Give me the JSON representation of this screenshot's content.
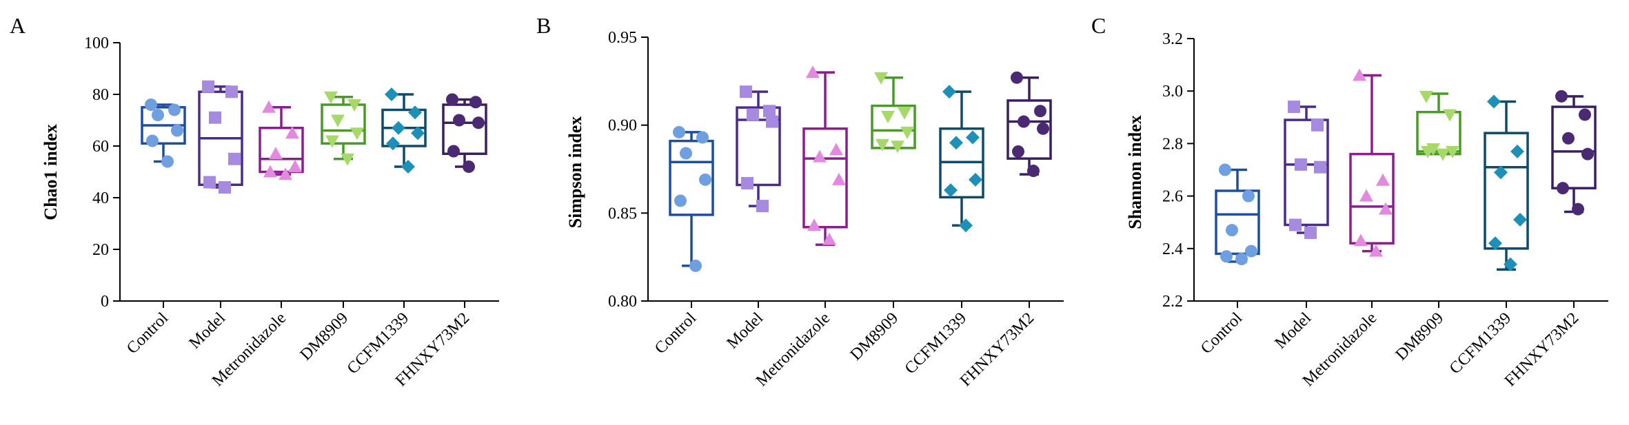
{
  "figure": {
    "categories": [
      "Control",
      "Model",
      "Metronidazole",
      "DM8909",
      "CCFM1339",
      "FHNXY73M2"
    ],
    "group_colors": {
      "box": [
        "#1e4f9a",
        "#4b2a8e",
        "#8a1e8e",
        "#4a9a2a",
        "#0f4a68",
        "#3a1f5e"
      ],
      "point": [
        "#6f9fe0",
        "#a58ae0",
        "#e28ae0",
        "#a6d86a",
        "#1e90b8",
        "#4a2a72"
      ]
    },
    "marker_shapes": [
      "circle",
      "square",
      "triangle-up",
      "triangle-down",
      "diamond",
      "circle"
    ]
  },
  "chart_data": [
    {
      "panel_label": "A",
      "type": "box",
      "ylabel": "Chao1 index",
      "ylim": [
        0,
        100
      ],
      "yticks": [
        0,
        20,
        40,
        60,
        80,
        100
      ],
      "ytick_labels": [
        "0",
        "20",
        "40",
        "60",
        "80",
        "100"
      ],
      "series": [
        {
          "name": "Control",
          "min": 54,
          "q1": 61,
          "median": 68,
          "q3": 75,
          "max": 76,
          "points": [
            76,
            74,
            72,
            66,
            62,
            54
          ]
        },
        {
          "name": "Model",
          "min": 44,
          "q1": 45,
          "median": 63,
          "q3": 81,
          "max": 83,
          "points": [
            83,
            81,
            71,
            55,
            46,
            44
          ]
        },
        {
          "name": "Metronidazole",
          "min": 49,
          "q1": 50,
          "median": 55,
          "q3": 67,
          "max": 75,
          "points": [
            75,
            65,
            57,
            52,
            50,
            49
          ]
        },
        {
          "name": "DM8909",
          "min": 55,
          "q1": 61,
          "median": 66,
          "q3": 76,
          "max": 79,
          "points": [
            79,
            76,
            70,
            65,
            62,
            55
          ]
        },
        {
          "name": "CCFM1339",
          "min": 52,
          "q1": 60,
          "median": 67,
          "q3": 74,
          "max": 80,
          "points": [
            80,
            73,
            67,
            65,
            61,
            52
          ]
        },
        {
          "name": "FHNXY73M2",
          "min": 52,
          "q1": 57,
          "median": 69,
          "q3": 76,
          "max": 78,
          "points": [
            78,
            77,
            70,
            69,
            58,
            52
          ]
        }
      ]
    },
    {
      "panel_label": "B",
      "type": "box",
      "ylabel": "Simpson index",
      "ylim": [
        0.8,
        0.95
      ],
      "yticks": [
        0.8,
        0.85,
        0.9,
        0.95
      ],
      "ytick_labels": [
        "0.80",
        "0.85",
        "0.90",
        "0.95"
      ],
      "series": [
        {
          "name": "Control",
          "min": 0.82,
          "q1": 0.849,
          "median": 0.879,
          "q3": 0.891,
          "max": 0.896,
          "points": [
            0.896,
            0.893,
            0.884,
            0.869,
            0.857,
            0.82
          ]
        },
        {
          "name": "Model",
          "min": 0.854,
          "q1": 0.866,
          "median": 0.903,
          "q3": 0.91,
          "max": 0.919,
          "points": [
            0.919,
            0.908,
            0.906,
            0.902,
            0.867,
            0.854
          ]
        },
        {
          "name": "Metronidazole",
          "min": 0.832,
          "q1": 0.842,
          "median": 0.881,
          "q3": 0.898,
          "max": 0.93,
          "points": [
            0.93,
            0.886,
            0.882,
            0.869,
            0.843,
            0.835
          ]
        },
        {
          "name": "DM8909",
          "min": 0.887,
          "q1": 0.887,
          "median": 0.897,
          "q3": 0.911,
          "max": 0.927,
          "points": [
            0.927,
            0.907,
            0.905,
            0.896,
            0.889,
            0.888
          ]
        },
        {
          "name": "CCFM1339",
          "min": 0.843,
          "q1": 0.859,
          "median": 0.879,
          "q3": 0.898,
          "max": 0.919,
          "points": [
            0.919,
            0.893,
            0.89,
            0.869,
            0.863,
            0.843
          ]
        },
        {
          "name": "FHNXY73M2",
          "min": 0.872,
          "q1": 0.881,
          "median": 0.902,
          "q3": 0.914,
          "max": 0.927,
          "points": [
            0.927,
            0.908,
            0.902,
            0.898,
            0.885,
            0.874
          ]
        }
      ]
    },
    {
      "panel_label": "C",
      "type": "box",
      "ylabel": "Shannon index",
      "ylim": [
        2.2,
        3.2
      ],
      "yticks": [
        2.2,
        2.4,
        2.6,
        2.8,
        3.0,
        3.2
      ],
      "ytick_labels": [
        "2.2",
        "2.4",
        "2.6",
        "2.8",
        "3.0",
        "3.2"
      ],
      "series": [
        {
          "name": "Control",
          "min": 2.35,
          "q1": 2.38,
          "median": 2.53,
          "q3": 2.62,
          "max": 2.7,
          "points": [
            2.7,
            2.6,
            2.47,
            2.39,
            2.37,
            2.36
          ]
        },
        {
          "name": "Model",
          "min": 2.46,
          "q1": 2.49,
          "median": 2.72,
          "q3": 2.89,
          "max": 2.94,
          "points": [
            2.94,
            2.87,
            2.72,
            2.71,
            2.49,
            2.46
          ]
        },
        {
          "name": "Metronidazole",
          "min": 2.39,
          "q1": 2.42,
          "median": 2.56,
          "q3": 2.76,
          "max": 3.06,
          "points": [
            3.06,
            2.66,
            2.6,
            2.55,
            2.43,
            2.39
          ]
        },
        {
          "name": "DM8909",
          "min": 2.76,
          "q1": 2.76,
          "median": 2.77,
          "q3": 2.92,
          "max": 2.99,
          "points": [
            2.98,
            2.91,
            2.78,
            2.77,
            2.77,
            2.76
          ]
        },
        {
          "name": "CCFM1339",
          "min": 2.32,
          "q1": 2.4,
          "median": 2.71,
          "q3": 2.84,
          "max": 2.96,
          "points": [
            2.96,
            2.77,
            2.69,
            2.51,
            2.42,
            2.34
          ]
        },
        {
          "name": "FHNXY73M2",
          "min": 2.54,
          "q1": 2.63,
          "median": 2.77,
          "q3": 2.94,
          "max": 2.98,
          "points": [
            2.98,
            2.91,
            2.82,
            2.76,
            2.63,
            2.55
          ]
        }
      ]
    }
  ]
}
